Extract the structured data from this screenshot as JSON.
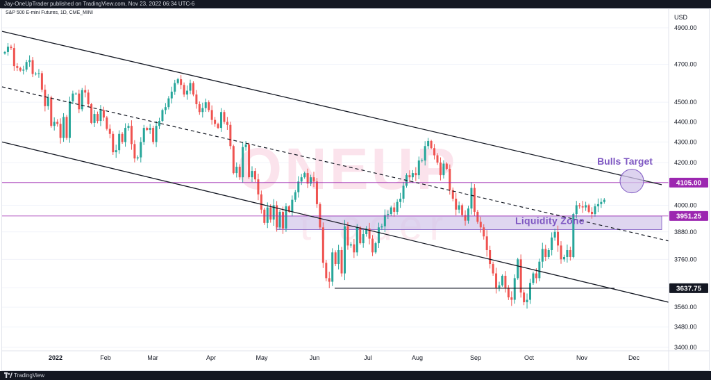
{
  "header": {
    "published": "Jay-OneUpTrader published on TradingView.com, Nov 23, 2022 06:34 UTC-6",
    "symbol": "S&P 500 E-mini Futures, 1D, CME_MINI"
  },
  "footer": {
    "brand": "TradingView"
  },
  "chart_data": {
    "type": "candlestick",
    "currency_label": "USD",
    "y_scale": "log",
    "ylim": [
      3380,
      4980
    ],
    "y_ticks": [
      4900,
      4700,
      4500,
      4400,
      4300,
      4200,
      4000,
      3880,
      3760,
      3640,
      3560,
      3480,
      3400
    ],
    "x_labels": [
      "2022",
      "Feb",
      "Mar",
      "Apr",
      "May",
      "Jun",
      "Jul",
      "Aug",
      "Sep",
      "Oct",
      "Nov",
      "Dec"
    ],
    "price_markers": [
      {
        "value": "4105.00",
        "color": "#9c27b0"
      },
      {
        "value": "3951.25",
        "color": "#9c27b0"
      },
      {
        "value": "3637.75",
        "color": "#131722"
      }
    ],
    "annotations": {
      "bulls_target": "Bulls Target",
      "liquidity_zone": "Liquidity Zone"
    },
    "watermark": "ONEUP trader",
    "colors": {
      "up": "#26a69a",
      "down": "#ef5350",
      "level": "#9c27b0",
      "zone": "#d1c4e9",
      "annotation": "#7e57c2"
    },
    "candles_close": [
      4766,
      4795,
      4788,
      4690,
      4680,
      4666,
      4671,
      4712,
      4722,
      4648,
      4650,
      4652,
      4565,
      4480,
      4525,
      4380,
      4400,
      4390,
      4320,
      4425,
      4320,
      4505,
      4545,
      4545,
      4464,
      4563,
      4550,
      4490,
      4395,
      4440,
      4405,
      4460,
      4422,
      4365,
      4340,
      4250,
      4260,
      4340,
      4300,
      4370,
      4380,
      4290,
      4220,
      4225,
      4300,
      4370,
      4360,
      4370,
      4300,
      4380,
      4405,
      4460,
      4475,
      4520,
      4555,
      4600,
      4620,
      4590,
      4540,
      4560,
      4600,
      4540,
      4490,
      4450,
      4470,
      4500,
      4460,
      4410,
      4390,
      4370,
      4450,
      4400,
      4385,
      4280,
      4150,
      4180,
      4130,
      4275,
      4288,
      4130,
      4160,
      4120,
      4050,
      3980,
      3920,
      3990,
      3935,
      4000,
      3900,
      3970,
      3895,
      3995,
      3970,
      4025,
      4060,
      4110,
      4130,
      4150,
      4100,
      4130,
      4110,
      4005,
      3900,
      3745,
      3680,
      3665,
      3790,
      3740,
      3800,
      3700,
      3905,
      3820,
      3825,
      3790,
      3900,
      3830,
      3870,
      3895,
      3850,
      3790,
      3830,
      3900,
      3905,
      3955,
      3960,
      3990,
      3970,
      4015,
      4030,
      4090,
      4140,
      4130,
      4150,
      4140,
      4210,
      4210,
      4280,
      4305,
      4270,
      4235,
      4200,
      4140,
      4195,
      4170,
      4070,
      4030,
      3980,
      4000,
      3955,
      3930,
      3985,
      4080,
      3970,
      3925,
      3900,
      3860,
      3800,
      3740,
      3700,
      3640,
      3650,
      3690,
      3640,
      3600,
      3590,
      3680,
      3760,
      3620,
      3580,
      3590,
      3660,
      3700,
      3680,
      3750,
      3805,
      3770,
      3800,
      3855,
      3880,
      3820,
      3760,
      3770,
      3800,
      3770,
      3960,
      4000,
      3995,
      3990,
      4000,
      3970,
      3960,
      3995,
      4005,
      4015,
      4025
    ]
  }
}
